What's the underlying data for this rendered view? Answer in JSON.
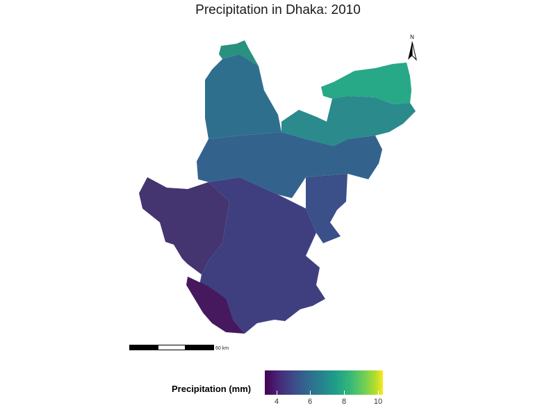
{
  "title": "Precipitation in Dhaka: 2010",
  "north_arrow": {
    "label": "N",
    "icon": "north-arrow-icon"
  },
  "scale_bar": {
    "label": "60 km"
  },
  "legend": {
    "title": "Precipitation (mm)",
    "ticks": [
      "4",
      "6",
      "8",
      "10"
    ],
    "colors": [
      "#440154",
      "#3e4a89",
      "#26828e",
      "#35b779",
      "#fde725"
    ]
  },
  "map": {
    "region": "Dhaka",
    "year": "2010",
    "colors": {
      "north_high": "#27a887",
      "north_mid": "#2a8a8c",
      "center": "#33638d",
      "south": "#3b4c88",
      "southwest": "#443470",
      "lowest": "#46195e"
    }
  }
}
